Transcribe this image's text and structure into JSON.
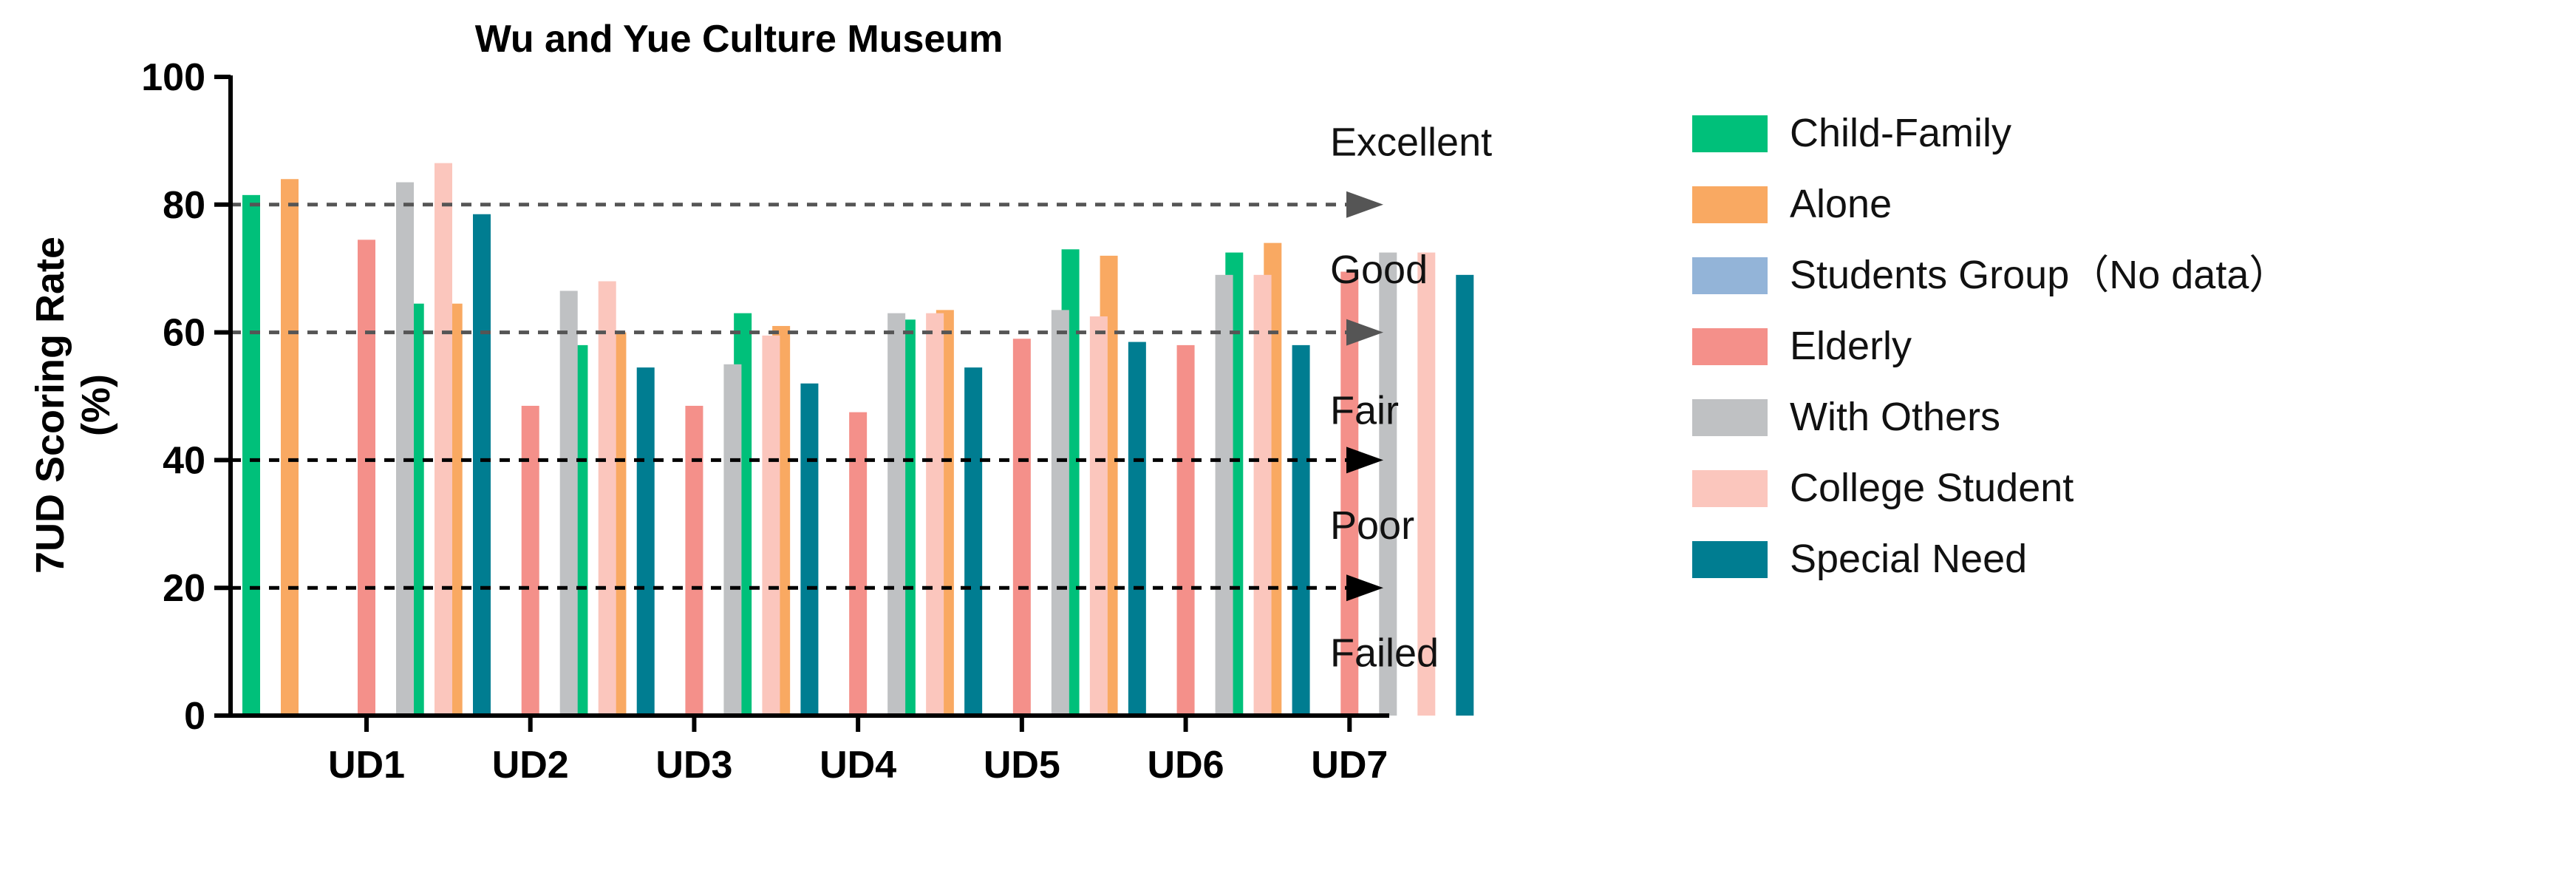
{
  "chart_data": {
    "type": "bar",
    "title": "Wu and Yue Culture Museum",
    "ylabel": "7UD Scoring Rate",
    "ylabel_unit": "(%)",
    "ylim": [
      0,
      100
    ],
    "yticks": [
      "0",
      "20",
      "40",
      "60",
      "80",
      "100"
    ],
    "grid": false,
    "legend_position": "right",
    "categories": [
      "UD1",
      "UD2",
      "UD3",
      "UD4",
      "UD5",
      "UD6",
      "UD7"
    ],
    "series": [
      {
        "name": "Child-Family",
        "color": "#00c07a",
        "values": [
          81.5,
          64.5,
          58,
          63,
          62,
          73,
          72.5
        ]
      },
      {
        "name": "Alone",
        "color": "#f9a962",
        "values": [
          84,
          64.5,
          60,
          61,
          63.5,
          72,
          74
        ]
      },
      {
        "name": "Students Group（No data）",
        "color": "#93b4d8",
        "values": [
          null,
          null,
          null,
          null,
          null,
          null,
          null
        ]
      },
      {
        "name": "Elderly",
        "color": "#f4908a",
        "values": [
          74.5,
          48.5,
          48.5,
          47.5,
          59,
          58,
          69.5
        ]
      },
      {
        "name": "With Others",
        "color": "#bfc1c3",
        "values": [
          83.5,
          66.5,
          55,
          63,
          63.5,
          69,
          72.5
        ]
      },
      {
        "name": "College Student",
        "color": "#fbc6bd",
        "values": [
          86.5,
          68,
          59.5,
          63,
          62.5,
          69,
          72.5
        ]
      },
      {
        "name": "Special Need",
        "color": "#007d91",
        "values": [
          78.5,
          54.5,
          52,
          54.5,
          58.5,
          58,
          69
        ]
      }
    ],
    "thresholds": [
      {
        "value": 80,
        "color": "#555555"
      },
      {
        "value": 60,
        "color": "#555555"
      },
      {
        "value": 40,
        "color": "#000000"
      },
      {
        "value": 20,
        "color": "#000000"
      }
    ],
    "band_labels": [
      {
        "text": "Excellent",
        "value": 90
      },
      {
        "text": "Good",
        "value": 70
      },
      {
        "text": "Fair",
        "value": 48
      },
      {
        "text": "Poor",
        "value": 30
      },
      {
        "text": "Failed",
        "value": 10
      }
    ]
  }
}
